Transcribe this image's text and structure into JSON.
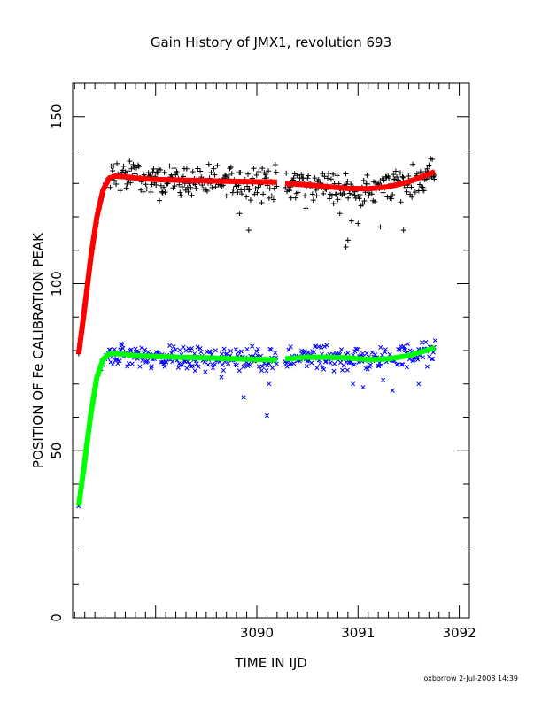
{
  "chart_data": {
    "type": "scatter",
    "title": "Gain History of JMX1, revolution 693",
    "xlabel": "TIME IN IJD",
    "ylabel": "POSITION OF Fe CALIBRATION PEAK",
    "xlim": [
      3088.18,
      3092.1
    ],
    "ylim": [
      0,
      160
    ],
    "x_ticks": [
      3090,
      3091,
      3092
    ],
    "x_tick_labels": [
      "3090",
      "3091",
      "3092"
    ],
    "y_ticks": [
      0,
      50,
      100,
      150
    ],
    "y_tick_labels": [
      "0",
      "50",
      "100",
      "150"
    ],
    "grid": false,
    "legend": "none",
    "gaps": [
      [
        3090.2,
        3090.28
      ]
    ],
    "series": [
      {
        "marker": "plus",
        "color": "#000000",
        "x_range": [
          3088.24,
          3091.76
        ],
        "approx_count": 420,
        "values_from_fit": "upper-fit",
        "scatter_amplitude": 4,
        "dips": [
          {
            "x": 3089.92,
            "y": 116
          },
          {
            "x": 3090.82,
            "y": 121
          },
          {
            "x": 3090.88,
            "y": 111
          },
          {
            "x": 3090.9,
            "y": 113
          },
          {
            "x": 3091.0,
            "y": 118
          },
          {
            "x": 3091.22,
            "y": 117
          },
          {
            "x": 3091.45,
            "y": 116
          },
          {
            "x": 3089.83,
            "y": 121
          }
        ]
      },
      {
        "marker": "cross",
        "color": "#0000ff",
        "x_range": [
          3088.24,
          3091.76
        ],
        "approx_count": 420,
        "values_from_fit": "lower-fit",
        "scatter_amplitude": 3,
        "dips": [
          {
            "x": 3089.65,
            "y": 72
          },
          {
            "x": 3089.87,
            "y": 66
          },
          {
            "x": 3090.1,
            "y": 60.5
          },
          {
            "x": 3090.12,
            "y": 70
          },
          {
            "x": 3090.95,
            "y": 70
          },
          {
            "x": 3091.05,
            "y": 69
          },
          {
            "x": 3091.34,
            "y": 68
          },
          {
            "x": 3091.6,
            "y": 70
          }
        ]
      },
      {
        "id": "upper-fit",
        "type": "line",
        "color": "#ff0000",
        "x": [
          3088.24,
          3088.3,
          3088.36,
          3088.42,
          3088.48,
          3088.54,
          3088.6,
          3088.7,
          3088.8,
          3089.0,
          3089.2,
          3089.5,
          3089.8,
          3090.2,
          3090.28,
          3090.5,
          3090.7,
          3090.9,
          3091.1,
          3091.3,
          3091.5,
          3091.76
        ],
        "y": [
          79,
          93,
          108,
          120,
          128,
          131.5,
          132.2,
          132,
          131.6,
          131.2,
          131,
          130.8,
          130.6,
          130.4,
          130,
          129.6,
          129,
          128.5,
          128.4,
          129,
          130.5,
          133.5
        ]
      },
      {
        "id": "lower-fit",
        "type": "line",
        "color": "#00ff00",
        "x": [
          3088.24,
          3088.3,
          3088.36,
          3088.42,
          3088.48,
          3088.54,
          3088.6,
          3088.7,
          3088.8,
          3089.0,
          3089.2,
          3089.5,
          3089.8,
          3090.2,
          3090.28,
          3090.5,
          3090.7,
          3090.9,
          3091.1,
          3091.3,
          3091.5,
          3091.76
        ],
        "y": [
          33.5,
          47,
          61,
          72,
          77.3,
          79,
          79.1,
          78.8,
          78.5,
          78.2,
          78,
          77.8,
          77.5,
          77.2,
          77.5,
          78,
          78,
          77.8,
          77.3,
          77.5,
          78.5,
          80.8
        ]
      }
    ]
  },
  "footer": {
    "credit": "oxborrow   2-Jul-2008 14:39"
  },
  "colors": {
    "background": "#ffffff",
    "axes": "#000000"
  }
}
